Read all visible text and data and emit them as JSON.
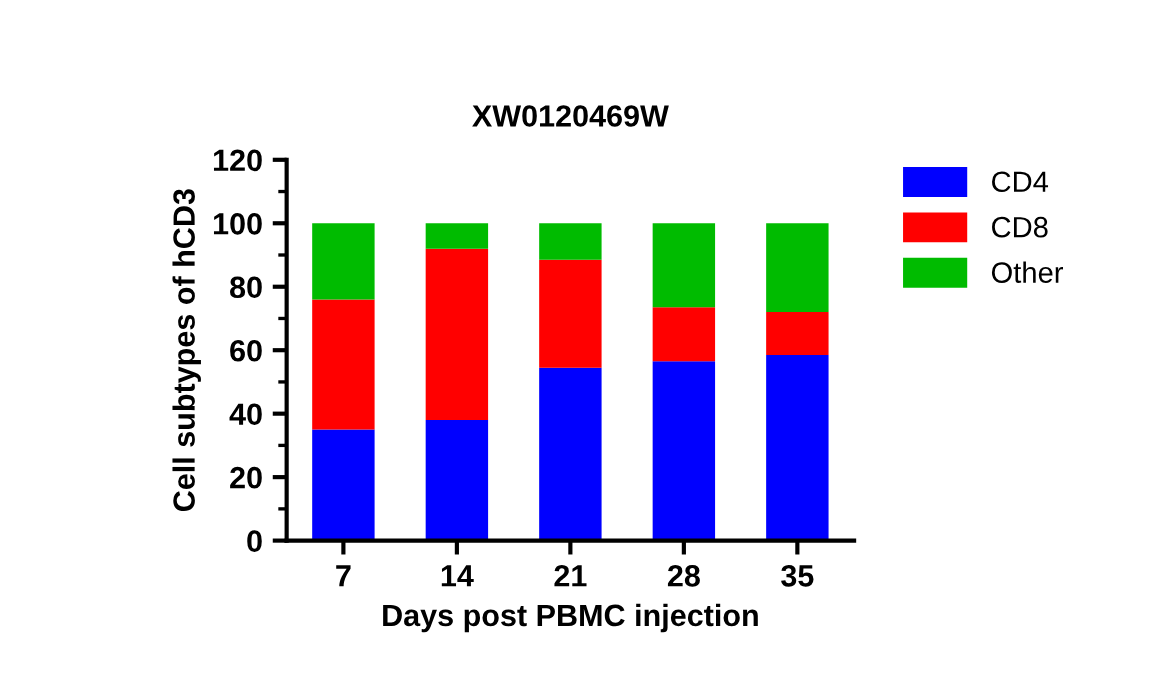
{
  "chart_data": {
    "type": "bar",
    "stacked": true,
    "title": "XW0120469W",
    "xlabel": "Days post PBMC injection",
    "ylabel": "Cell subtypes of hCD3",
    "categories": [
      "7",
      "14",
      "21",
      "28",
      "35"
    ],
    "series": [
      {
        "name": "CD4",
        "color": "#0000ff",
        "values": [
          35,
          38,
          54.5,
          56.5,
          58.5
        ]
      },
      {
        "name": "CD8",
        "color": "#ff0000",
        "values": [
          41,
          54,
          34,
          17,
          13.5
        ]
      },
      {
        "name": "Other",
        "color": "#00bb00",
        "values": [
          24,
          8,
          11.5,
          26.5,
          28
        ]
      }
    ],
    "ylim": [
      0,
      120
    ],
    "yticks": [
      0,
      20,
      40,
      60,
      80,
      100,
      120
    ],
    "grid": false,
    "legend": "right"
  }
}
